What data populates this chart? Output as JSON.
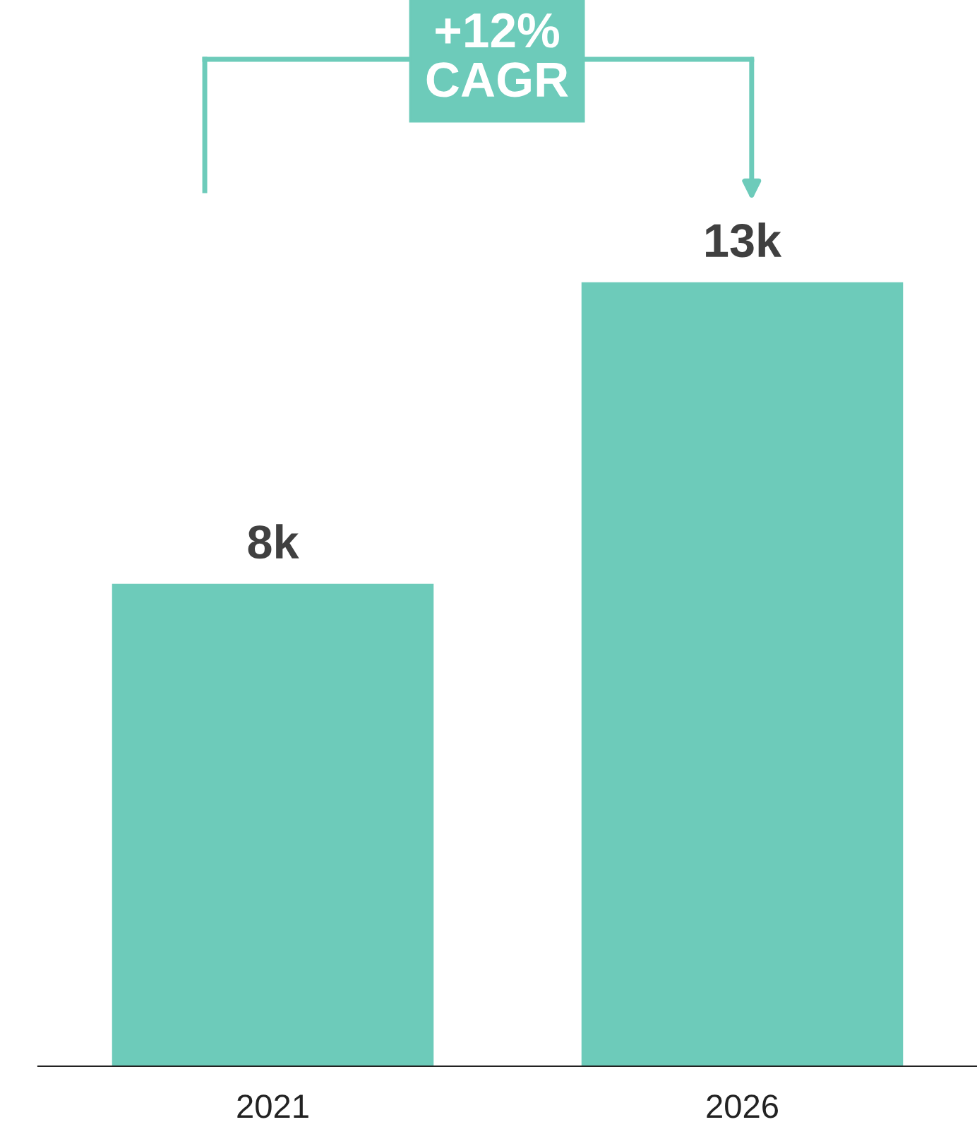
{
  "chart_data": {
    "type": "bar",
    "categories": [
      "2021",
      "2026"
    ],
    "values": [
      8,
      13
    ],
    "value_labels": [
      "8k",
      "13k"
    ],
    "color": "#6dcbba",
    "annotations": [
      "+12%\nCAGR"
    ],
    "grid": false,
    "legend": false
  }
}
